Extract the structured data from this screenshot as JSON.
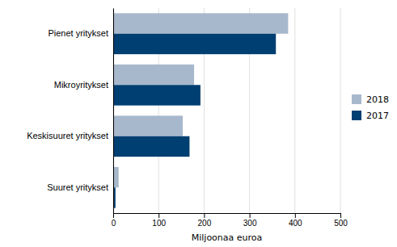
{
  "chart_data": {
    "type": "bar",
    "orientation": "horizontal",
    "categories": [
      "Pienet yritykset",
      "Mikroyritykset",
      "Keskisuuret yritykset",
      "Suuret yritykset"
    ],
    "series": [
      {
        "name": "2018",
        "color": "#a8b8cc",
        "values": [
          385,
          178,
          153,
          12
        ]
      },
      {
        "name": "2017",
        "color": "#003f72",
        "values": [
          358,
          192,
          168,
          5
        ]
      }
    ],
    "xlabel": "Miljoonaa euroa",
    "xlim": [
      0,
      500
    ],
    "xticks": [
      0,
      100,
      200,
      300,
      400,
      500
    ],
    "grid": true,
    "legend": "right"
  }
}
